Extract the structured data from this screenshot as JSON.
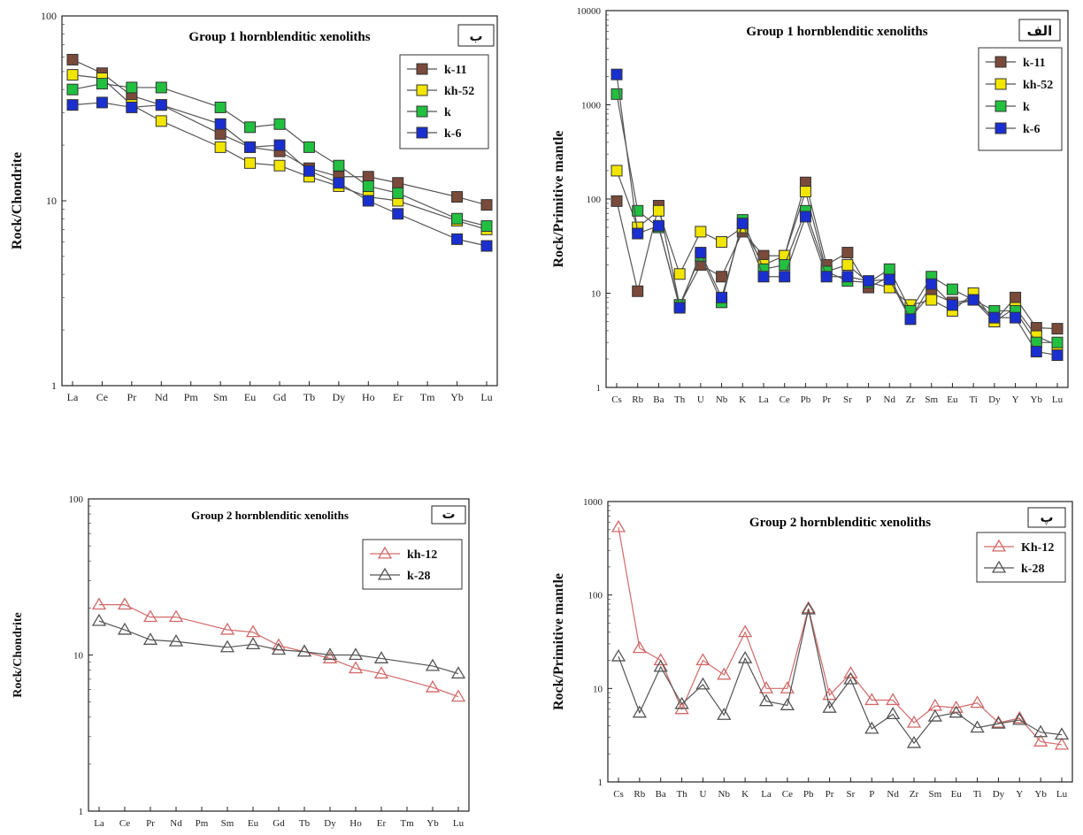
{
  "chart_data": [
    {
      "id": "c1",
      "type": "line",
      "log": true,
      "ylim": [
        1,
        100
      ],
      "yticks": [
        "1",
        "10",
        "100"
      ],
      "title": "Group 1 hornblenditic xenoliths",
      "ylabel": "Rock/Chondrite",
      "panel_label": "ب",
      "marker": "square",
      "categories": [
        "La",
        "Ce",
        "Pr",
        "Nd",
        "Pm",
        "Sm",
        "Eu",
        "Gd",
        "Tb",
        "Dy",
        "Ho",
        "Er",
        "Tm",
        "Yb",
        "Lu"
      ],
      "series": [
        {
          "name": "k-11",
          "color": "#7a4a3a",
          "values": [
            58,
            49,
            37,
            33,
            null,
            23,
            19.5,
            18.5,
            15,
            13.5,
            13.5,
            12.5,
            null,
            10.5,
            9.5
          ]
        },
        {
          "name": "kh-52",
          "color": "#f2e600",
          "values": [
            48,
            46,
            33,
            27,
            null,
            19.5,
            16,
            15.5,
            13.5,
            12,
            10.5,
            10,
            null,
            7.8,
            7
          ]
        },
        {
          "name": "k",
          "color": "#22c040",
          "values": [
            40,
            43,
            41,
            41,
            null,
            32,
            25,
            26,
            19.5,
            15.5,
            12,
            11,
            null,
            8,
            7.3
          ]
        },
        {
          "name": "k-6",
          "color": "#1a2fd0",
          "values": [
            33,
            34,
            32,
            33,
            null,
            26,
            19.5,
            20,
            14.5,
            12.5,
            10,
            8.5,
            null,
            6.2,
            5.7
          ]
        }
      ]
    },
    {
      "id": "c2",
      "type": "line",
      "log": true,
      "ylim": [
        1,
        10000
      ],
      "yticks": [
        "1",
        "10",
        "100",
        "1000",
        "10000"
      ],
      "title": "Group 1 hornblenditic xenoliths",
      "ylabel": "Rock/Primitive mantle",
      "panel_label": "الف",
      "marker": "square",
      "categories": [
        "Cs",
        "Rb",
        "Ba",
        "Th",
        "U",
        "Nb",
        "K",
        "La",
        "Ce",
        "Pb",
        "Pr",
        "Sr",
        "P",
        "Nd",
        "Zr",
        "Sm",
        "Eu",
        "Ti",
        "Dy",
        "Y",
        "Yb",
        "Lu"
      ],
      "series": [
        {
          "name": "k-11",
          "color": "#7a4a3a",
          "values": [
            95,
            10.5,
            85,
            7.5,
            20,
            15,
            45,
            25,
            25,
            150,
            20,
            27,
            11.5,
            15,
            5.5,
            10,
            8,
            8.5,
            5,
            9,
            4.3,
            4.2
          ]
        },
        {
          "name": "kh-52",
          "color": "#f2e600",
          "values": [
            200,
            50,
            75,
            16,
            45,
            35,
            50,
            20,
            25,
            120,
            17,
            20,
            13,
            11.5,
            7.5,
            8.5,
            6.5,
            10,
            5,
            7,
            3.5,
            2.8
          ]
        },
        {
          "name": "k",
          "color": "#22c040",
          "values": [
            1300,
            75,
            50,
            7.5,
            25,
            8,
            60,
            18,
            20,
            75,
            17,
            13.5,
            13,
            18,
            6.5,
            15,
            11,
            8.5,
            6.5,
            6.5,
            3,
            3
          ]
        },
        {
          "name": "k-6",
          "color": "#1a2fd0",
          "values": [
            2100,
            43,
            52,
            7,
            27,
            9,
            55,
            15,
            15,
            65,
            15,
            15,
            13.5,
            14,
            5.3,
            12.5,
            7.5,
            8.5,
            5.5,
            5.5,
            2.4,
            2.2
          ]
        }
      ]
    },
    {
      "id": "c3",
      "type": "line",
      "log": true,
      "ylim": [
        1,
        100
      ],
      "yticks": [
        "1",
        "10",
        "100"
      ],
      "title": "Group 2 hornblenditic xenoliths",
      "ylabel": "Rock/Chondrite",
      "panel_label": "ت",
      "marker": "triangle",
      "categories": [
        "La",
        "Ce",
        "Pr",
        "Nd",
        "Pm",
        "Sm",
        "Eu",
        "Gd",
        "Tb",
        "Dy",
        "Ho",
        "Er",
        "Tm",
        "Yb",
        "Lu"
      ],
      "series": [
        {
          "name": "kh-12",
          "color": "#d06a6a",
          "values": [
            21,
            21,
            17.5,
            17.5,
            null,
            14.5,
            14,
            11.5,
            10.5,
            9.5,
            8.2,
            7.6,
            null,
            6.2,
            5.4
          ]
        },
        {
          "name": "k-28",
          "color": "#555555",
          "values": [
            16.5,
            14.5,
            12.5,
            12.2,
            null,
            11.2,
            11.7,
            10.8,
            10.5,
            10,
            10,
            9.5,
            null,
            8.5,
            7.6
          ]
        }
      ]
    },
    {
      "id": "c4",
      "type": "line",
      "log": true,
      "ylim": [
        1,
        1000
      ],
      "yticks": [
        "1",
        "10",
        "100",
        "1000"
      ],
      "title": "Group 2 hornblenditic xenoliths",
      "ylabel": "Rock/Primitive mantle",
      "panel_label": "پ",
      "marker": "triangle",
      "categories": [
        "Cs",
        "Rb",
        "Ba",
        "Th",
        "U",
        "Nb",
        "K",
        "La",
        "Ce",
        "Pb",
        "Pr",
        "Sr",
        "P",
        "Nd",
        "Zr",
        "Sm",
        "Eu",
        "Ti",
        "Dy",
        "Y",
        "Yb",
        "Lu"
      ],
      "series": [
        {
          "name": "Kh-12",
          "color": "#d06a6a",
          "values": [
            530,
            27,
            20,
            6,
            20,
            14,
            40,
            10,
            10,
            72,
            8.5,
            14.5,
            7.5,
            7.5,
            4.3,
            6.5,
            6.2,
            7,
            4.3,
            4.8,
            2.7,
            2.5
          ]
        },
        {
          "name": "k-28",
          "color": "#555555",
          "values": [
            22,
            5.5,
            17,
            6.8,
            11,
            5.2,
            21,
            7.3,
            6.6,
            70,
            6.2,
            12.5,
            3.7,
            5.3,
            2.6,
            5,
            5.5,
            3.8,
            4.2,
            4.6,
            3.4,
            3.2
          ]
        }
      ]
    }
  ]
}
